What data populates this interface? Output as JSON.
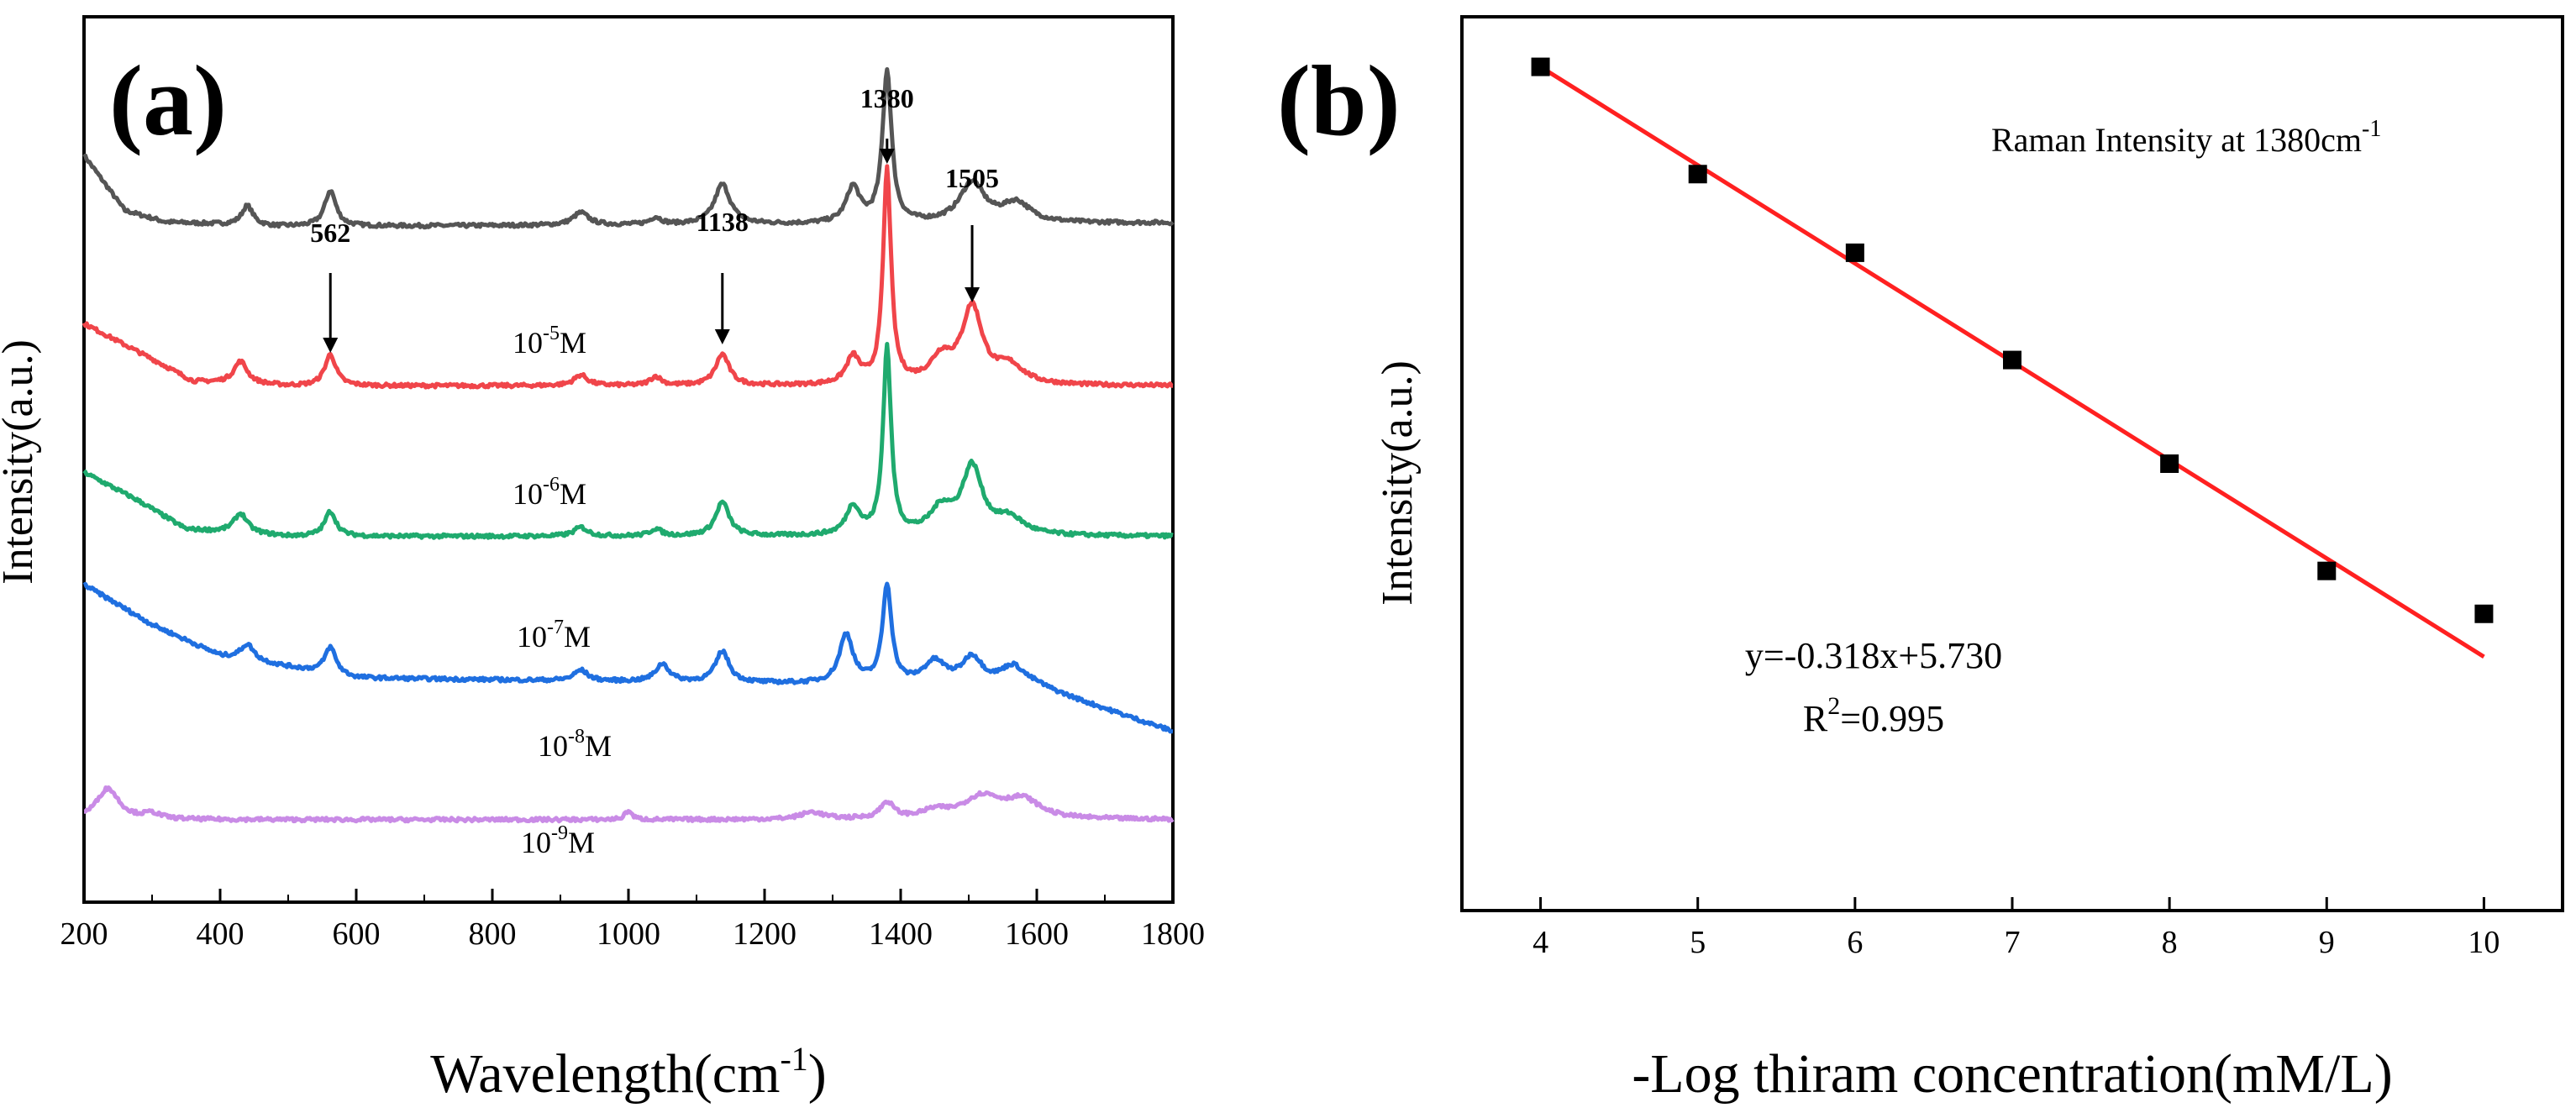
{
  "chart_data": [
    {
      "type": "line",
      "panel_label": "(a)",
      "xlabel_main": "Wavelength(cm",
      "xlabel_sup": "-1",
      "xlabel_end": ")",
      "ylabel": "Intensity(a.u.)",
      "xlim": [
        200,
        1800
      ],
      "x_ticks": [
        "200",
        "400",
        "600",
        "800",
        "1000",
        "1200",
        "1400",
        "1600",
        "1800"
      ],
      "colors": {
        "1e-5": "#555555",
        "1e-6": "#f0454a",
        "1e-7": "#1faa6e",
        "1e-8": "#1f6fe0",
        "1e-9": "#c98be6"
      },
      "series": [
        {
          "key": "1e-5",
          "label_base": "10",
          "label_exp": "-5",
          "label_unit": "M",
          "baseline": 0.18
        },
        {
          "key": "1e-6",
          "label_base": "10",
          "label_exp": "-6",
          "label_unit": "M",
          "baseline": 0.36
        },
        {
          "key": "1e-7",
          "label_base": "10",
          "label_exp": "-7",
          "label_unit": "M",
          "baseline": 0.53
        },
        {
          "key": "1e-8",
          "label_base": "10",
          "label_exp": "-8",
          "label_unit": "M",
          "baseline": 0.69
        },
        {
          "key": "1e-9",
          "label_base": "10",
          "label_exp": "-9",
          "label_unit": "M",
          "baseline": 0.85
        }
      ],
      "peaks": [
        {
          "position": 562,
          "label": "562"
        },
        {
          "position": 1138,
          "label": "1138"
        },
        {
          "position": 1380,
          "label": "1380"
        },
        {
          "position": 1505,
          "label": "1505"
        }
      ]
    },
    {
      "type": "scatter",
      "panel_label": "(b)",
      "title": "Raman Intensity at 1380cm",
      "title_sup": "-1",
      "xlabel": "-Log thiram concentration(mM/L)",
      "ylabel": "Intensity(a.u.)",
      "xlim": [
        3.5,
        10.5
      ],
      "ylim": [
        2.1,
        4.6
      ],
      "x_ticks": [
        "4",
        "5",
        "6",
        "7",
        "8",
        "9",
        "10"
      ],
      "x": [
        4,
        5,
        6,
        7,
        8,
        9,
        10
      ],
      "y": [
        4.46,
        4.16,
        3.94,
        3.64,
        3.35,
        3.05,
        2.93
      ],
      "fit": {
        "slope": -0.318,
        "intercept": 5.73,
        "line_color": "#ff2020"
      },
      "equation": "y=-0.318x+5.730",
      "r2_label": "R",
      "r2_sup": "2",
      "r2_value": "=0.995"
    }
  ]
}
